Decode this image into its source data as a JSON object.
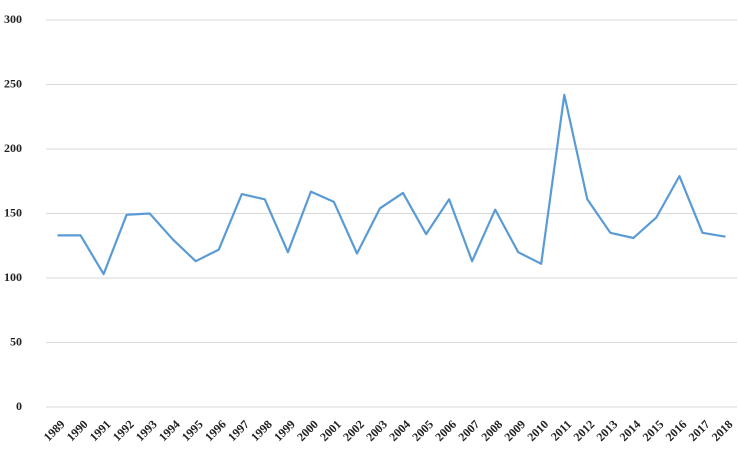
{
  "chart_data": {
    "type": "line",
    "categories": [
      "1989",
      "1990",
      "1991",
      "1992",
      "1993",
      "1994",
      "1995",
      "1996",
      "1997",
      "1998",
      "1999",
      "2000",
      "2001",
      "2002",
      "2003",
      "2004",
      "2005",
      "2006",
      "2007",
      "2008",
      "2009",
      "2010",
      "2011",
      "2012",
      "2013",
      "2014",
      "2015",
      "2016",
      "2017",
      "2018"
    ],
    "values": [
      133,
      133,
      103,
      149,
      150,
      130,
      113,
      122,
      165,
      161,
      120,
      167,
      159,
      119,
      154,
      166,
      134,
      161,
      113,
      153,
      120,
      111,
      242,
      161,
      135,
      131,
      147,
      179,
      135,
      132
    ],
    "color": "#5b9bd5",
    "ylim": [
      0,
      300
    ],
    "yticks": [
      0,
      50,
      100,
      150,
      200,
      250,
      300
    ],
    "grid": true
  }
}
